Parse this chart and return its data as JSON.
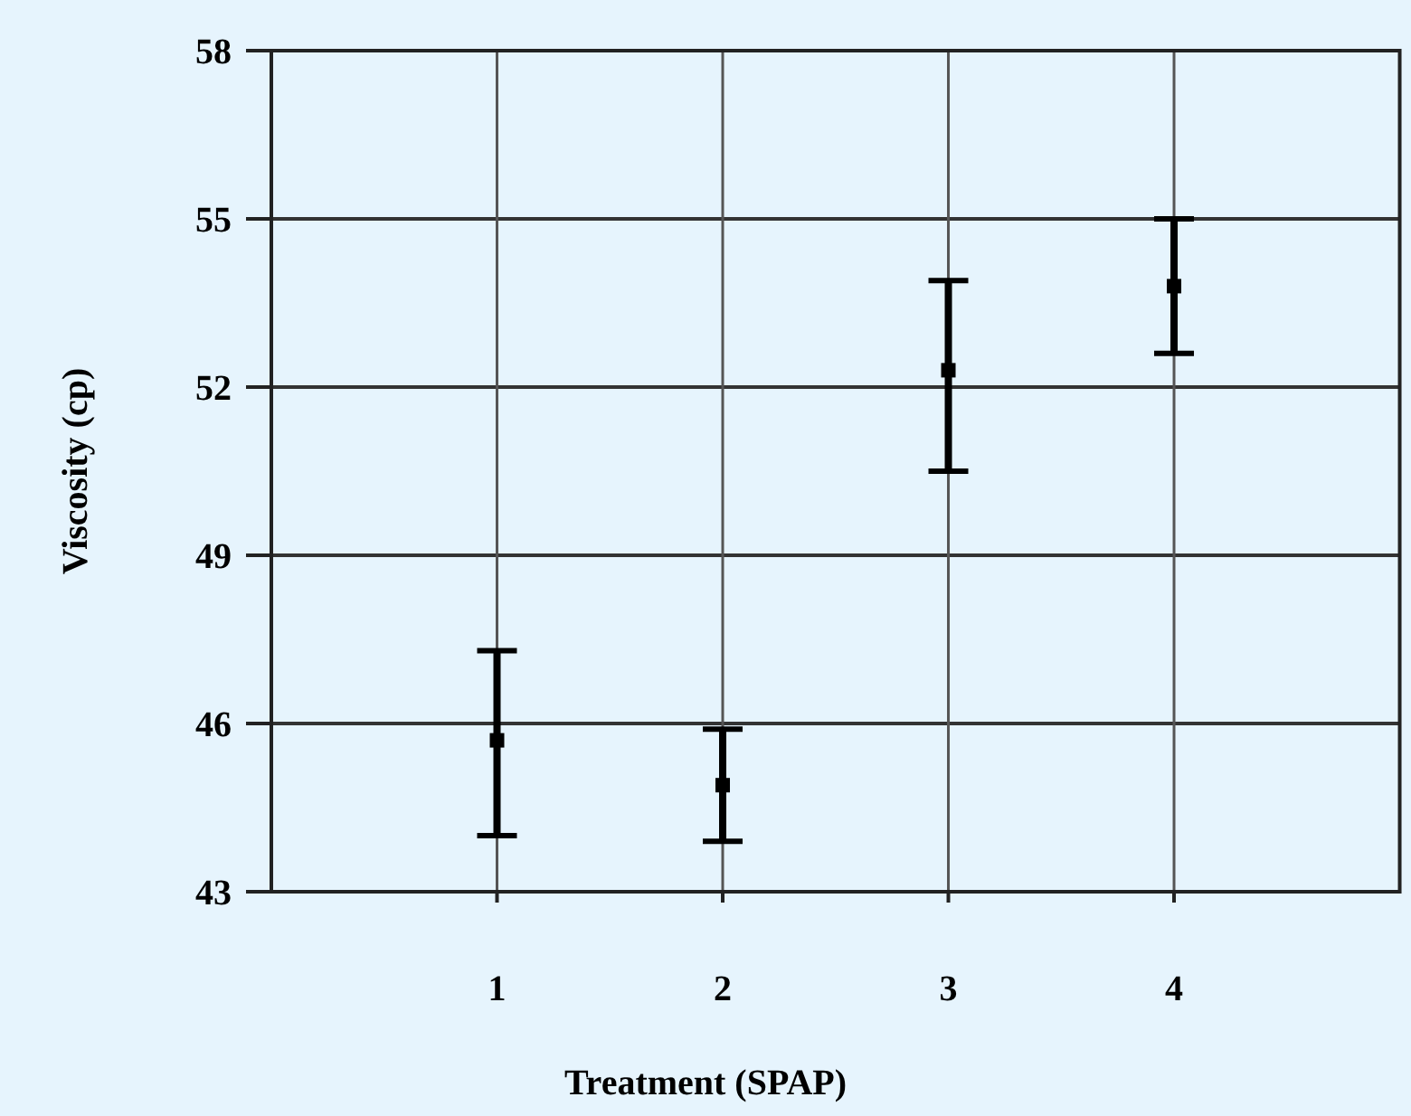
{
  "chart_data": {
    "type": "scatter",
    "xlabel": "Treatment (SPAP)",
    "ylabel": "Viscosity (cp)",
    "x": [
      1,
      2,
      3,
      4
    ],
    "values": [
      45.7,
      44.9,
      52.3,
      53.8
    ],
    "errors": [
      [
        44,
        47.3
      ],
      [
        43.9,
        45.9
      ],
      [
        50.5,
        53.9
      ],
      [
        52.6,
        55
      ]
    ],
    "color": "#000000",
    "marker": "square",
    "grid": true,
    "xlim": [
      0,
      5
    ],
    "xticks": [
      1,
      2,
      3,
      4
    ],
    "ylim": [
      43,
      58
    ],
    "yticks": [
      43,
      46,
      49,
      52,
      55,
      58
    ]
  }
}
